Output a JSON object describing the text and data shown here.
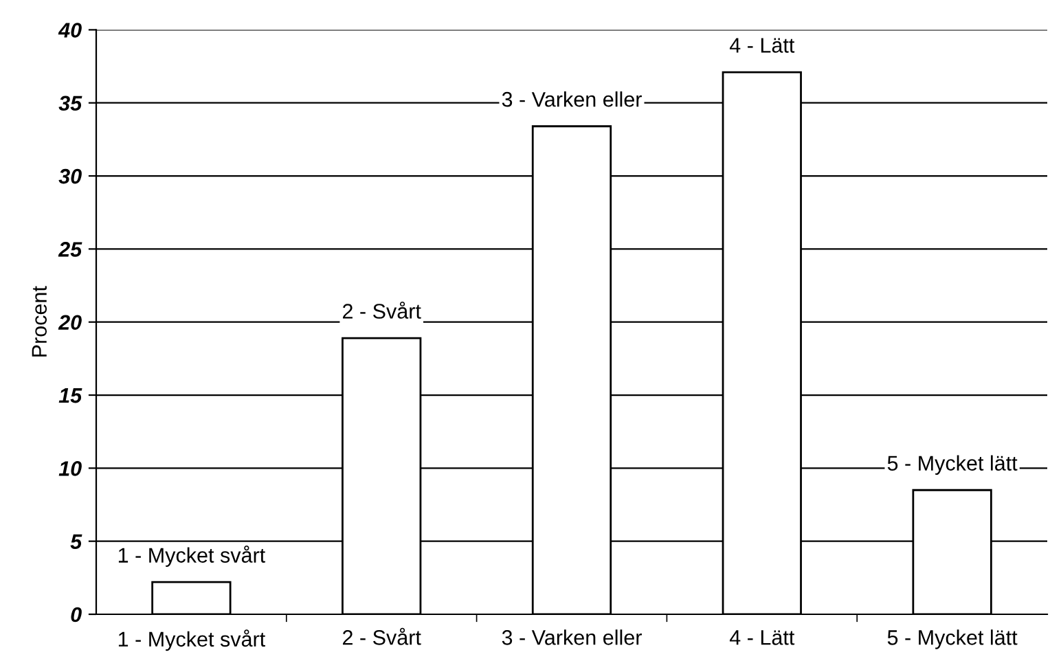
{
  "chart_data": {
    "type": "bar",
    "ylabel": "Procent",
    "categories": [
      "1 - Mycket svårt",
      "2 - Svårt",
      "3 - Varken eller",
      "4 - Lätt",
      "5 - Mycket lätt"
    ],
    "values": [
      2.2,
      18.9,
      33.4,
      37.1,
      8.5
    ],
    "color": "#ffffff",
    "ylim": [
      0,
      40
    ],
    "yticks": [
      0,
      5,
      10,
      15,
      20,
      25,
      30,
      35,
      40
    ],
    "grid": "y",
    "annotations": [
      {
        "text": "1 - Mycket svårt",
        "x": "1 - Mycket svårt",
        "y": 2.2
      },
      {
        "text": "2 - Svårt",
        "x": "2 - Svårt",
        "y": 18.9
      },
      {
        "text": "3 - Varken eller",
        "x": "3 - Varken eller",
        "y": 33.4
      },
      {
        "text": "4 - Lätt",
        "x": "4 - Lätt",
        "y": 37.1
      },
      {
        "text": "5 - Mycket lätt",
        "x": "5 - Mycket lätt",
        "y": 8.5
      }
    ]
  }
}
